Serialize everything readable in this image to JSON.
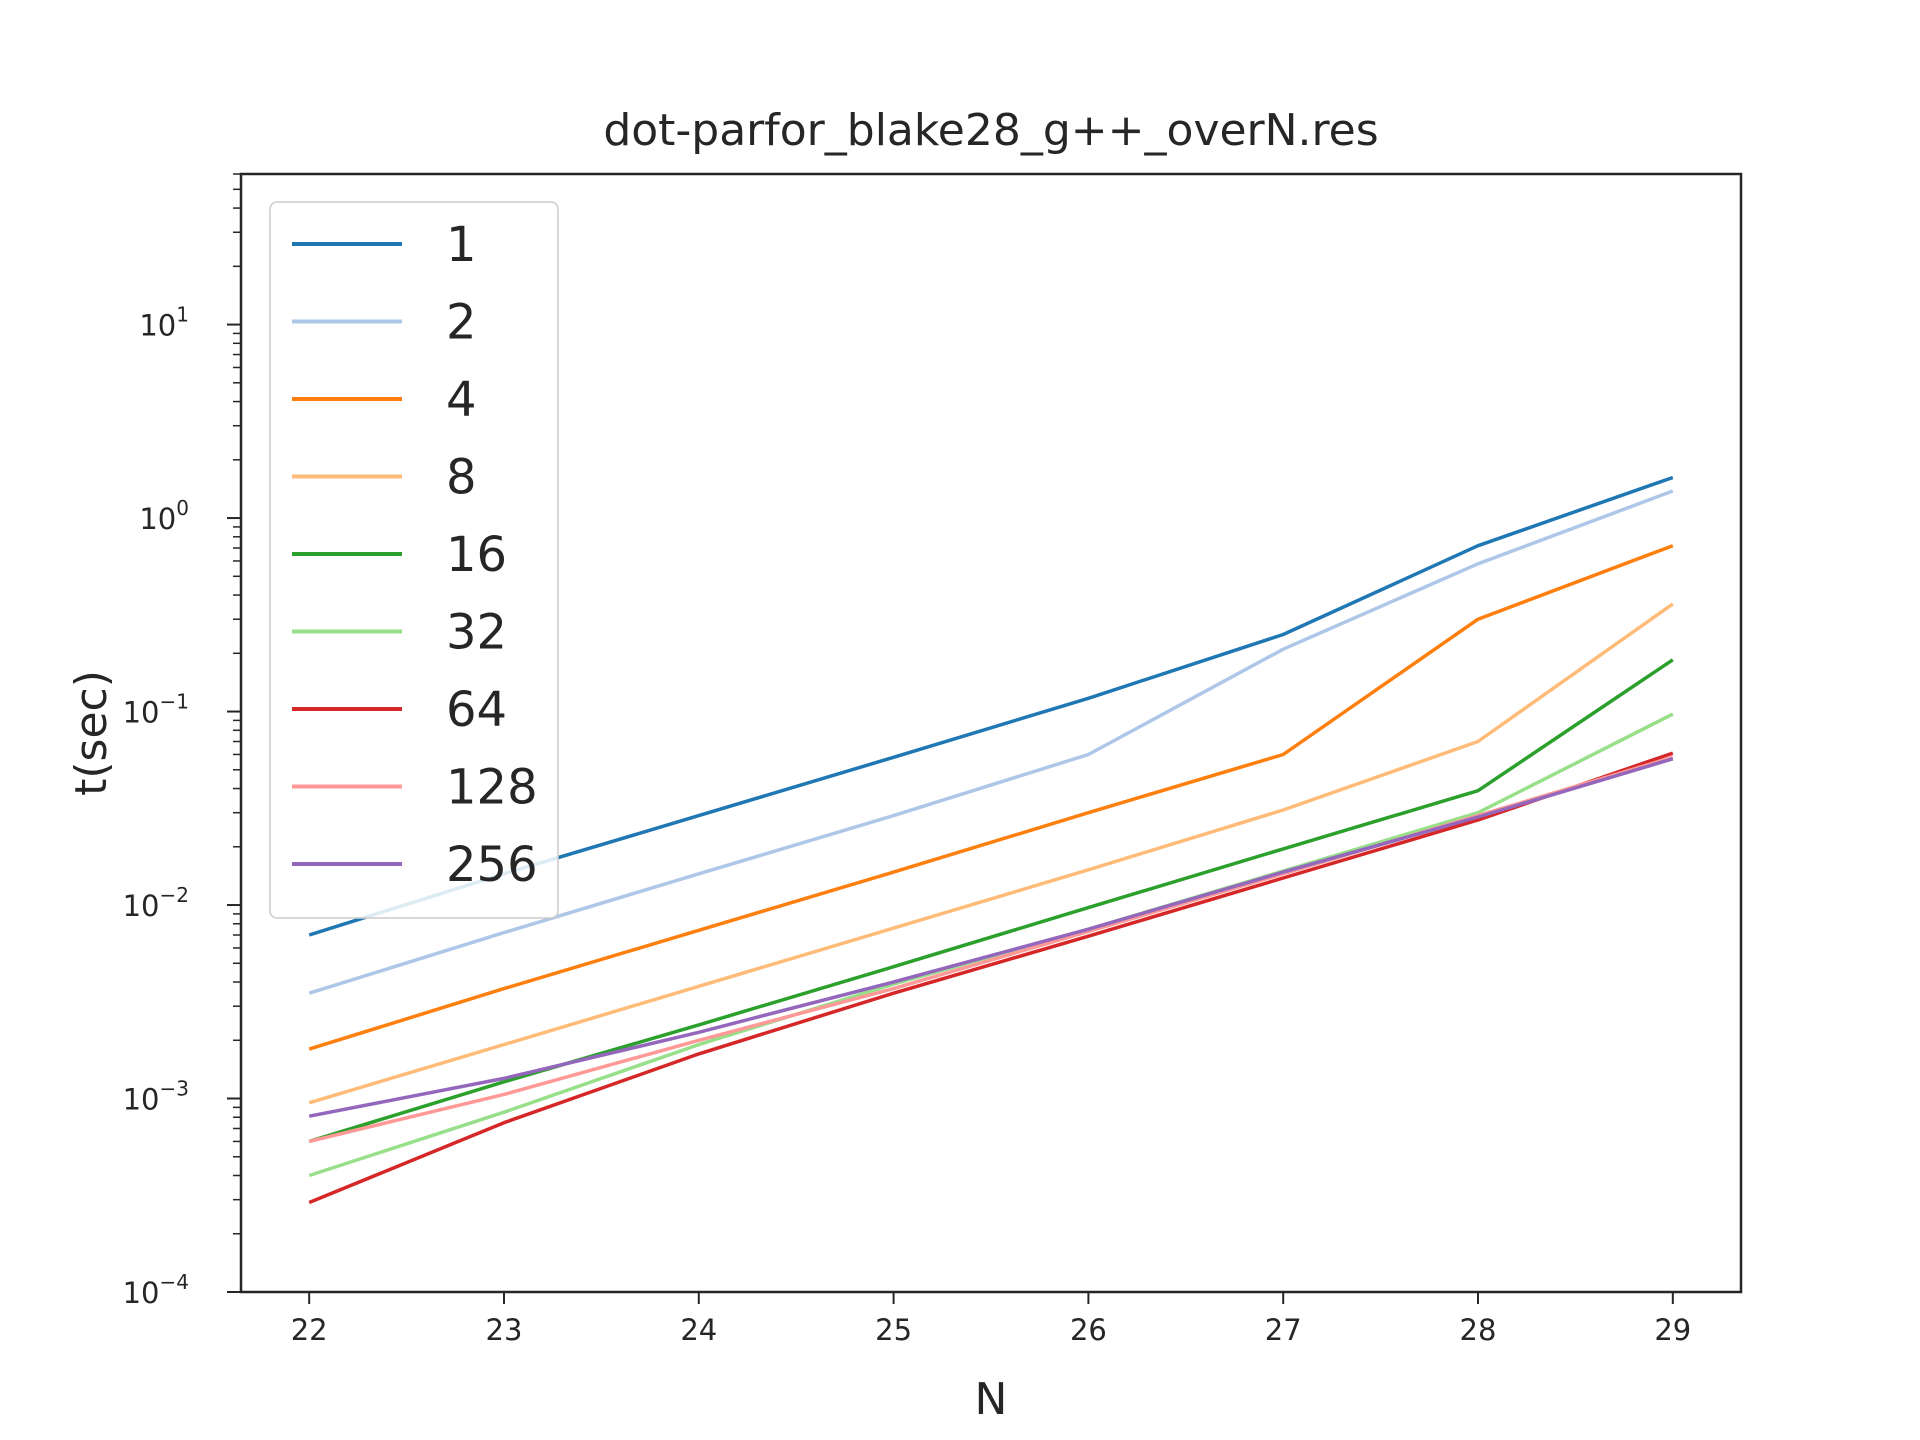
{
  "chart_data": {
    "type": "line",
    "title": "dot-parfor_blake28_g++_overN.res",
    "xlabel": "N",
    "ylabel": "t(sec)",
    "x": [
      22,
      23,
      24,
      25,
      26,
      27,
      28,
      29
    ],
    "x_ticks": [
      "22",
      "23",
      "24",
      "25",
      "26",
      "27",
      "28",
      "29"
    ],
    "xlim": [
      21.65,
      29.35
    ],
    "y_scale": "log",
    "ylim": [
      0.0001,
      60
    ],
    "y_ticks": [
      {
        "value": 0.0001,
        "base": "10",
        "exp": "−4"
      },
      {
        "value": 0.001,
        "base": "10",
        "exp": "−3"
      },
      {
        "value": 0.01,
        "base": "10",
        "exp": "−2"
      },
      {
        "value": 0.1,
        "base": "10",
        "exp": "−1"
      },
      {
        "value": 1,
        "base": "10",
        "exp": "0"
      },
      {
        "value": 10,
        "base": "10",
        "exp": "1"
      }
    ],
    "grid": false,
    "legend_position": "top-left",
    "series": [
      {
        "name": "1",
        "color": "#1f77b4",
        "values": [
          0.007,
          0.0145,
          0.029,
          0.058,
          0.117,
          0.25,
          0.72,
          1.62
        ]
      },
      {
        "name": "2",
        "color": "#aec7e8",
        "values": [
          0.0035,
          0.0072,
          0.0145,
          0.029,
          0.06,
          0.21,
          0.58,
          1.38
        ]
      },
      {
        "name": "4",
        "color": "#ff7f0e",
        "values": [
          0.0018,
          0.0037,
          0.0074,
          0.0148,
          0.03,
          0.06,
          0.3,
          0.72
        ]
      },
      {
        "name": "8",
        "color": "#ffbb78",
        "values": [
          0.00095,
          0.0019,
          0.0038,
          0.0076,
          0.0152,
          0.031,
          0.07,
          0.36
        ]
      },
      {
        "name": "16",
        "color": "#2ca02c",
        "values": [
          0.0006,
          0.00122,
          0.0024,
          0.0048,
          0.0097,
          0.0195,
          0.039,
          0.185
        ]
      },
      {
        "name": "32",
        "color": "#98df8a",
        "values": [
          0.0004,
          0.00085,
          0.0019,
          0.0039,
          0.0075,
          0.015,
          0.03,
          0.097
        ]
      },
      {
        "name": "64",
        "color": "#d62728",
        "values": [
          0.00029,
          0.00075,
          0.0017,
          0.0035,
          0.0069,
          0.0138,
          0.0275,
          0.061
        ]
      },
      {
        "name": "128",
        "color": "#ff9896",
        "values": [
          0.0006,
          0.00105,
          0.002,
          0.0037,
          0.0073,
          0.0145,
          0.029,
          0.058
        ]
      },
      {
        "name": "256",
        "color": "#9467bd",
        "values": [
          0.00081,
          0.00127,
          0.0022,
          0.004,
          0.0075,
          0.0148,
          0.0285,
          0.057
        ]
      }
    ]
  }
}
